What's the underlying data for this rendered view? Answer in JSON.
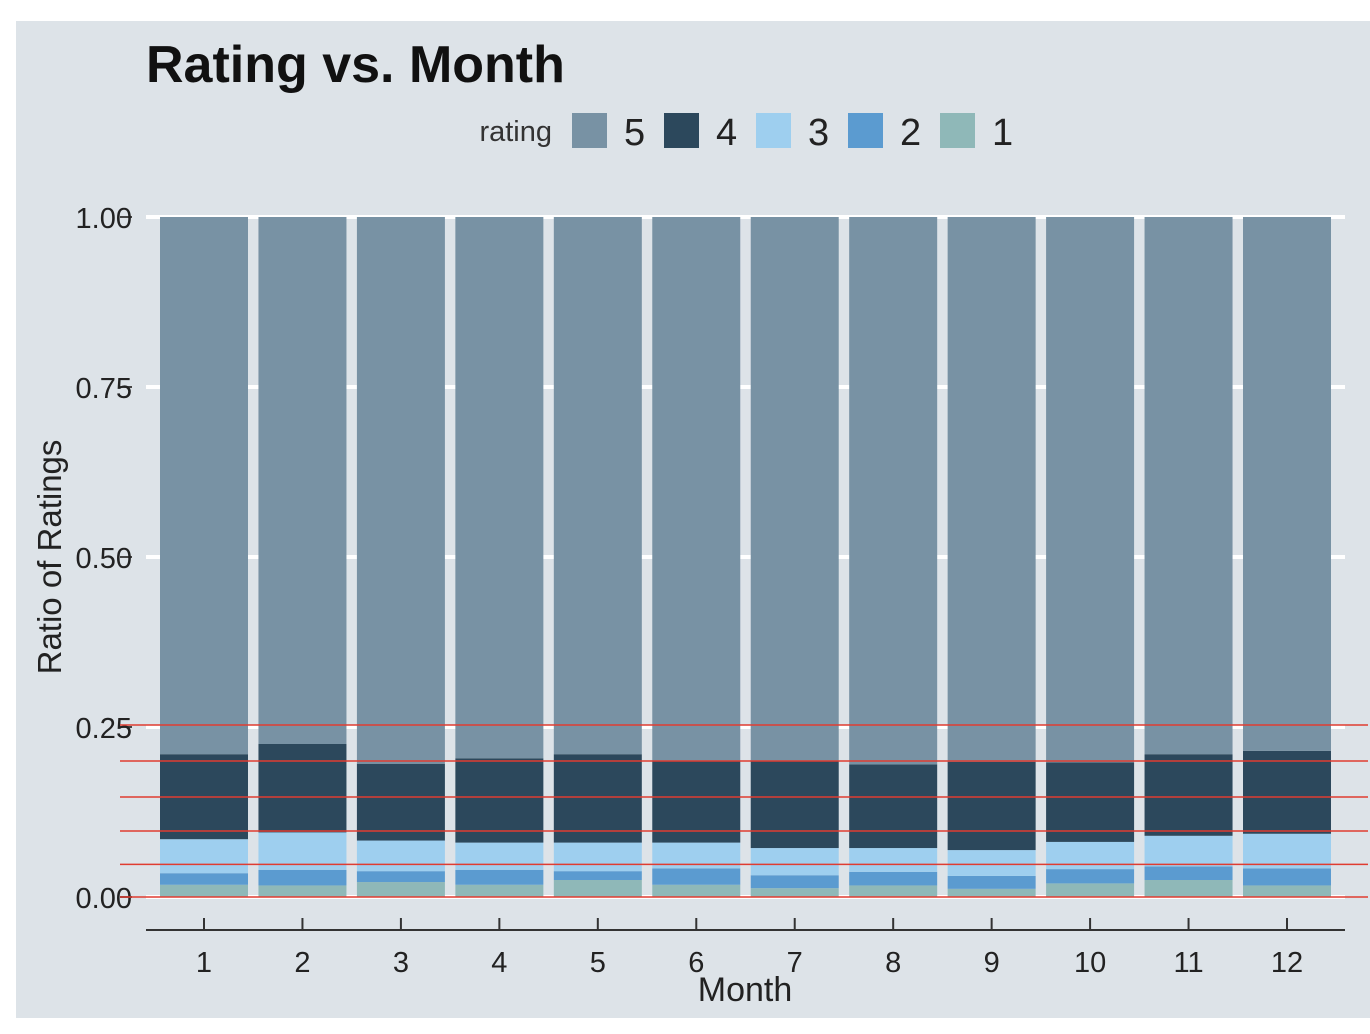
{
  "chart_data": {
    "type": "bar",
    "stacked": true,
    "title": "Rating vs. Month",
    "xlabel": "Month",
    "ylabel": "Ratio of Ratings",
    "ylim": [
      0,
      1
    ],
    "yticks": [
      "0.00",
      "0.25",
      "0.50",
      "0.75",
      "1.00"
    ],
    "ytick_values": [
      0,
      0.25,
      0.5,
      0.75,
      1.0
    ],
    "categories": [
      "1",
      "2",
      "3",
      "4",
      "5",
      "6",
      "7",
      "8",
      "9",
      "10",
      "11",
      "12"
    ],
    "legend": {
      "title": "rating",
      "position": "top"
    },
    "grid": true,
    "background": "#dde3e8",
    "series": [
      {
        "name": "1",
        "color": "#8fb8b8",
        "values": [
          0.018,
          0.017,
          0.022,
          0.018,
          0.025,
          0.018,
          0.013,
          0.017,
          0.012,
          0.02,
          0.025,
          0.017
        ]
      },
      {
        "name": "2",
        "color": "#5b9bd0",
        "values": [
          0.017,
          0.023,
          0.016,
          0.022,
          0.013,
          0.024,
          0.019,
          0.02,
          0.019,
          0.021,
          0.02,
          0.025
        ]
      },
      {
        "name": "3",
        "color": "#9ecfef",
        "values": [
          0.05,
          0.055,
          0.045,
          0.04,
          0.042,
          0.038,
          0.04,
          0.035,
          0.038,
          0.04,
          0.045,
          0.051
        ]
      },
      {
        "name": "4",
        "color": "#2c485c",
        "values": [
          0.125,
          0.13,
          0.113,
          0.124,
          0.13,
          0.12,
          0.128,
          0.123,
          0.13,
          0.117,
          0.12,
          0.122
        ]
      },
      {
        "name": "5",
        "color": "#7892a4",
        "values": [
          0.79,
          0.775,
          0.804,
          0.796,
          0.79,
          0.8,
          0.8,
          0.805,
          0.801,
          0.802,
          0.79,
          0.785
        ]
      }
    ],
    "reference_lines": [
      0.0,
      0.048,
      0.097,
      0.147,
      0.2,
      0.253
    ],
    "reference_line_color": "#e03c31"
  }
}
